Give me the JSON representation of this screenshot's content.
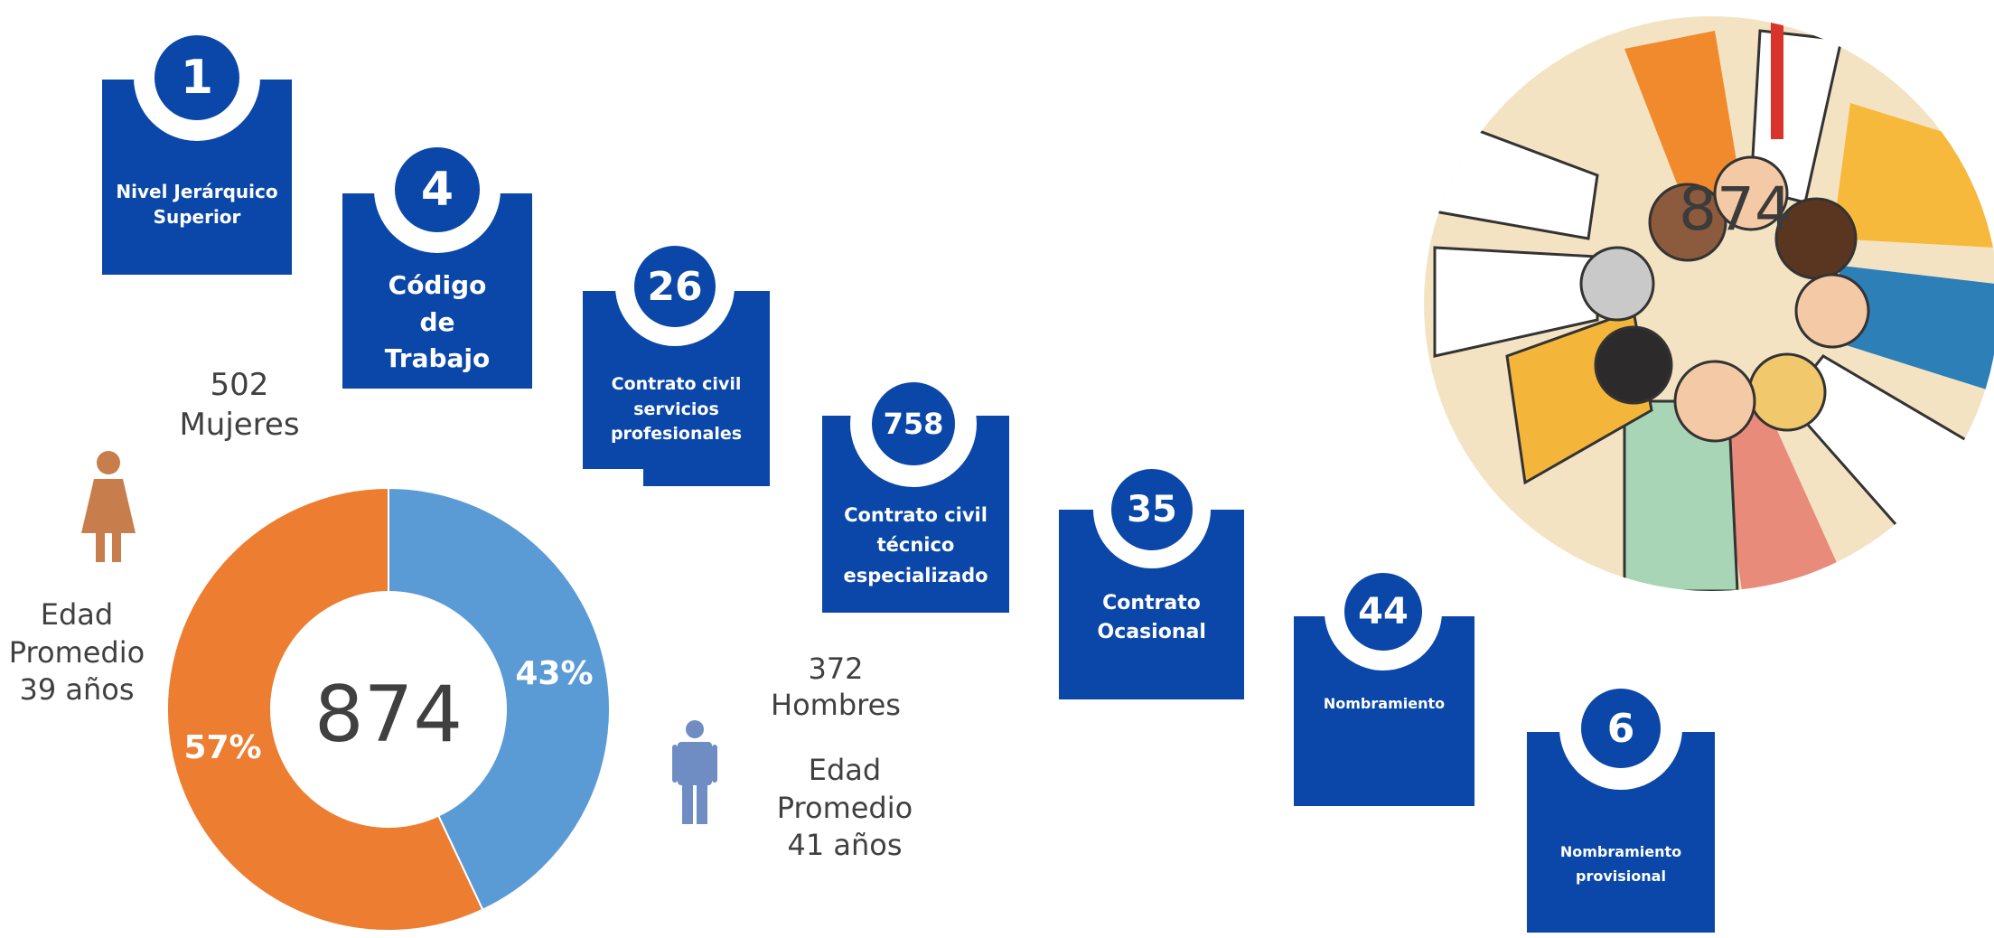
{
  "colors": {
    "card_blue": "#0a47a8",
    "women_orange": "#ed7d31",
    "men_blue": "#5b9bd5",
    "woman_icon": "#c87d4c",
    "man_icon": "#6f8dc2"
  },
  "contracts": [
    {
      "number": "1",
      "label": "Nivel Jerárquico Superior"
    },
    {
      "number": "4",
      "label": "Código de Trabajo"
    },
    {
      "number": "26",
      "label": "Contrato civil servicios profesionales"
    },
    {
      "number": "758",
      "label": "Contrato civil técnico especializado"
    },
    {
      "number": "35",
      "label": "Contrato Ocasional"
    },
    {
      "number": "44",
      "label": "Nombramiento"
    },
    {
      "number": "6",
      "label": "Nombramiento provisional"
    }
  ],
  "women": {
    "count": "502",
    "label": "Mujeres",
    "age_text": "Edad\nPromedio\n39 años",
    "icon": "woman-icon"
  },
  "men": {
    "count": "372",
    "label": "Hombres",
    "age_text": "Edad\nPromedio\n41 años",
    "icon": "man-icon"
  },
  "photo": {
    "total": "874",
    "description_icon": "group-of-people-photo"
  },
  "chart_data": {
    "type": "pie",
    "categories": [
      "Mujeres",
      "Hombres"
    ],
    "values": [
      57,
      43
    ],
    "data_labels": [
      "57%",
      "43%"
    ],
    "center_label": "874",
    "colors": [
      "#ed7d31",
      "#5b9bd5"
    ],
    "title": ""
  }
}
